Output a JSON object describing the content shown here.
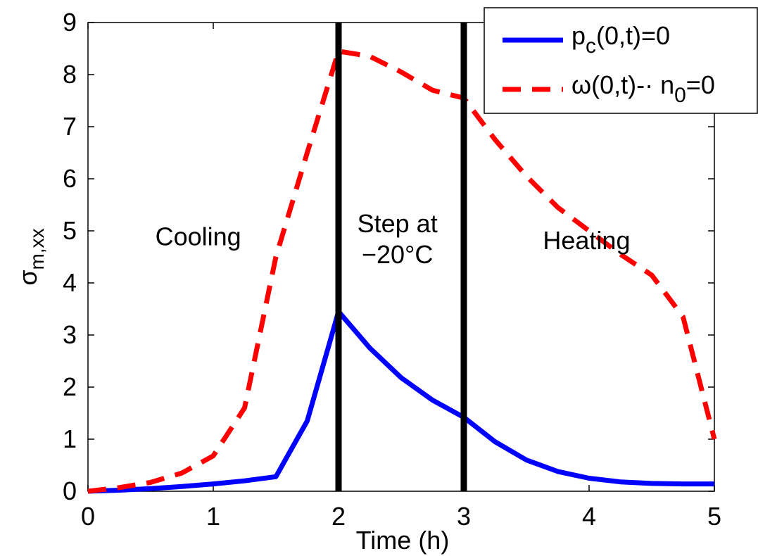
{
  "chart_data": {
    "type": "line",
    "xlabel": "Time (h)",
    "ylabel": {
      "main": "σ",
      "sub": "m,xx"
    },
    "xlim": [
      0,
      5
    ],
    "ylim": [
      0,
      9
    ],
    "xticks": [
      "0",
      "1",
      "2",
      "3",
      "4",
      "5"
    ],
    "yticks": [
      "0",
      "1",
      "2",
      "3",
      "4",
      "5",
      "6",
      "7",
      "8",
      "9"
    ],
    "grid": false,
    "legend_position": "top-right",
    "series": [
      {
        "name": {
          "main": "p",
          "sub": "c",
          "rest": "(0,t)=0"
        },
        "color": "#0000ff",
        "style": "solid",
        "x": [
          0,
          0.25,
          0.5,
          0.75,
          1.0,
          1.25,
          1.5,
          1.75,
          2.0,
          2.25,
          2.5,
          2.75,
          3.0,
          3.25,
          3.5,
          3.75,
          4.0,
          4.25,
          4.5,
          4.75,
          5.0
        ],
        "y": [
          0.0,
          0.02,
          0.05,
          0.09,
          0.14,
          0.2,
          0.28,
          1.35,
          3.45,
          2.75,
          2.18,
          1.75,
          1.42,
          0.95,
          0.6,
          0.38,
          0.25,
          0.18,
          0.15,
          0.14,
          0.14
        ]
      },
      {
        "name": {
          "main": "ω(0,t)-· n",
          "sub": "0",
          "rest": "=0"
        },
        "color": "#ff0000",
        "style": "dashed",
        "x": [
          0,
          0.25,
          0.5,
          0.75,
          1.0,
          1.25,
          1.5,
          1.75,
          2.0,
          2.25,
          2.5,
          2.75,
          3.0,
          3.25,
          3.5,
          3.75,
          4.0,
          4.25,
          4.5,
          4.75,
          5.0
        ],
        "y": [
          0.0,
          0.07,
          0.17,
          0.35,
          0.68,
          1.6,
          4.5,
          6.5,
          8.45,
          8.35,
          8.05,
          7.7,
          7.55,
          6.75,
          6.05,
          5.45,
          5.0,
          4.55,
          4.15,
          3.35,
          1.0
        ]
      }
    ],
    "vlines": [
      {
        "x": 2,
        "color": "#000000"
      },
      {
        "x": 3,
        "color": "#000000"
      }
    ],
    "annotations": [
      {
        "id": "cooling",
        "lines": [
          "Cooling"
        ],
        "x": 0.88,
        "y": 4.72
      },
      {
        "id": "step",
        "lines": [
          "Step at",
          "−20°C"
        ],
        "x": 2.47,
        "y": 4.97
      },
      {
        "id": "heating",
        "lines": [
          "Heating"
        ],
        "x": 3.98,
        "y": 4.65
      }
    ]
  }
}
